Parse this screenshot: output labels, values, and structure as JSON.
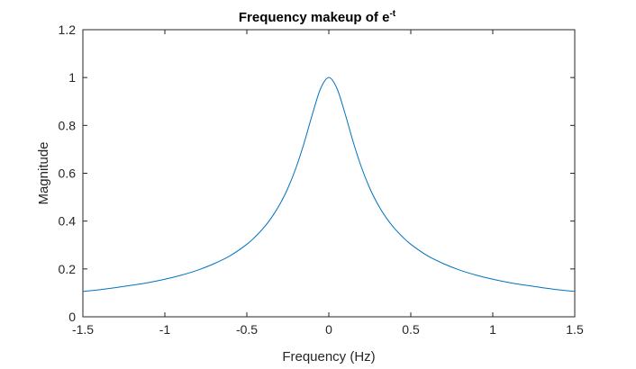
{
  "chart_data": {
    "type": "line",
    "title": {
      "base": "Frequency makeup of e",
      "superscript": "-t"
    },
    "xlabel": "Frequency (Hz)",
    "ylabel": "Magnitude",
    "xlim": [
      -1.5,
      1.5
    ],
    "ylim": [
      0,
      1.2
    ],
    "x_ticks": [
      -1.5,
      -1,
      -0.5,
      0,
      0.5,
      1,
      1.5
    ],
    "x_tick_labels": [
      "-1.5",
      "-1",
      "-0.5",
      "0",
      "0.5",
      "1",
      "1.5"
    ],
    "y_ticks": [
      0,
      0.2,
      0.4,
      0.6,
      0.8,
      1,
      1.2
    ],
    "y_tick_labels": [
      "0",
      "0.2",
      "0.4",
      "0.6",
      "0.8",
      "1",
      "1.2"
    ],
    "grid": false,
    "legend": "none",
    "line_color": "#0072BD",
    "series": [
      {
        "x": [
          -1.5,
          -1.4,
          -1.3,
          -1.2,
          -1.1,
          -1.0,
          -0.9,
          -0.8,
          -0.7,
          -0.6,
          -0.5,
          -0.45,
          -0.4,
          -0.35,
          -0.3,
          -0.25,
          -0.2,
          -0.15,
          -0.1,
          -0.05,
          0,
          0.05,
          0.1,
          0.15,
          0.2,
          0.25,
          0.3,
          0.35,
          0.4,
          0.45,
          0.5,
          0.6,
          0.7,
          0.8,
          0.9,
          1.0,
          1.1,
          1.2,
          1.3,
          1.4,
          1.5
        ],
        "values": [
          0.106,
          0.113,
          0.122,
          0.132,
          0.143,
          0.157,
          0.174,
          0.195,
          0.222,
          0.256,
          0.303,
          0.334,
          0.37,
          0.414,
          0.469,
          0.537,
          0.623,
          0.728,
          0.847,
          0.954,
          1.0,
          0.954,
          0.847,
          0.728,
          0.623,
          0.537,
          0.469,
          0.414,
          0.37,
          0.334,
          0.303,
          0.256,
          0.222,
          0.195,
          0.174,
          0.157,
          0.143,
          0.132,
          0.122,
          0.113,
          0.106
        ]
      }
    ]
  }
}
